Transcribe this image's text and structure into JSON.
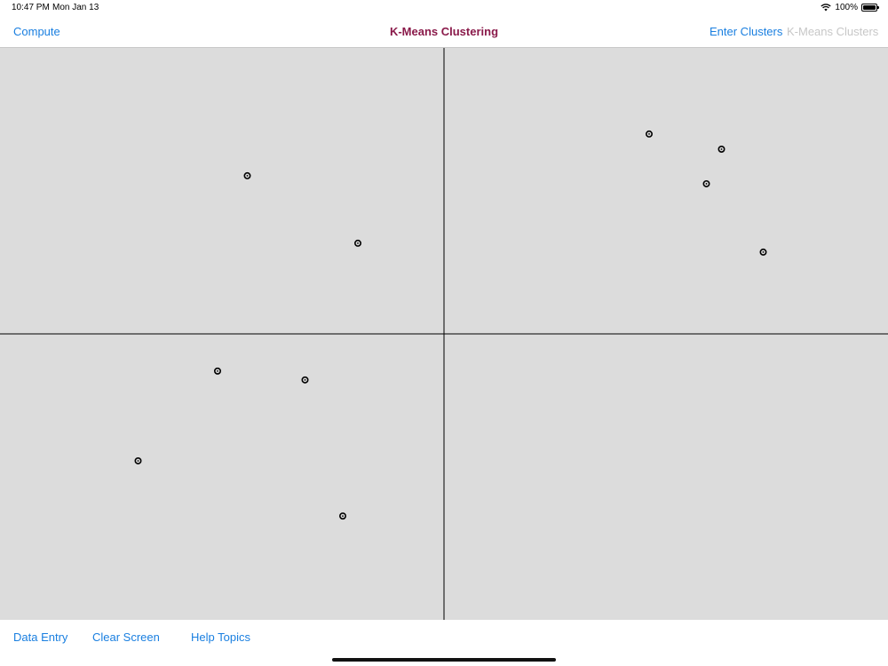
{
  "status_bar": {
    "time": "10:47 PM",
    "date": "Mon Jan 13",
    "battery": "100%",
    "icons": [
      "wifi-icon",
      "battery-icon"
    ]
  },
  "nav": {
    "left_button": "Compute",
    "title": "K-Means Clustering",
    "right_buttons": [
      "Enter Clusters",
      "K-Means Clusters"
    ],
    "title_color": "#8a1a4a",
    "accent_color": "#1a7fe0",
    "disabled_color": "#c7c7c7"
  },
  "toolbar": {
    "buttons": [
      "Data Entry",
      "Clear Screen",
      "Help Topics"
    ]
  },
  "chart_data": {
    "type": "scatter",
    "xlim": [
      -1,
      1
    ],
    "ylim": [
      -1,
      1
    ],
    "grid": false,
    "axes_through_origin": true,
    "background": "#dcdcdc",
    "point_color": "#000000",
    "points": [
      {
        "x": -0.443,
        "y": 0.553
      },
      {
        "x": -0.194,
        "y": 0.317
      },
      {
        "x": 0.462,
        "y": 0.699
      },
      {
        "x": 0.625,
        "y": 0.646
      },
      {
        "x": 0.591,
        "y": 0.525
      },
      {
        "x": 0.719,
        "y": 0.286
      },
      {
        "x": -0.51,
        "y": -0.13
      },
      {
        "x": -0.313,
        "y": -0.161
      },
      {
        "x": -0.689,
        "y": -0.444
      },
      {
        "x": -0.228,
        "y": -0.637
      }
    ]
  }
}
